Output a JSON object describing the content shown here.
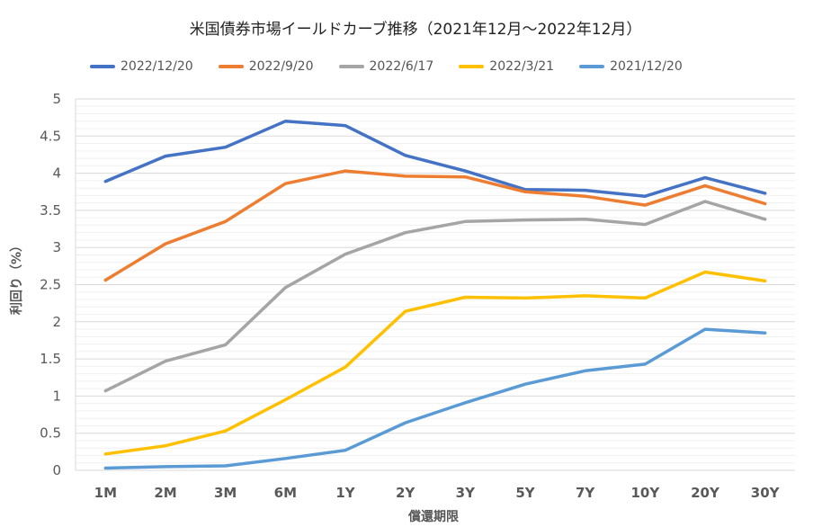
{
  "chart_data": {
    "type": "line",
    "title": "米国債券市場イールドカーブ推移（2021年12月～2022年12月）",
    "xlabel": "償還期限",
    "ylabel": "利回り（%）",
    "ylim": [
      0,
      5
    ],
    "yticks": [
      "0",
      "0.5",
      "1",
      "1.5",
      "2",
      "2.5",
      "3",
      "3.5",
      "4",
      "4.5",
      "5"
    ],
    "grid": true,
    "legend_position": "top",
    "categories": [
      "1M",
      "2M",
      "3M",
      "6M",
      "1Y",
      "2Y",
      "3Y",
      "5Y",
      "7Y",
      "10Y",
      "20Y",
      "30Y"
    ],
    "series": [
      {
        "name": "2022/12/20",
        "color": "#4472C4",
        "values": [
          3.89,
          4.23,
          4.35,
          4.7,
          4.64,
          4.24,
          4.03,
          3.78,
          3.77,
          3.69,
          3.94,
          3.73
        ]
      },
      {
        "name": "2022/9/20",
        "color": "#ED7D31",
        "values": [
          2.56,
          3.05,
          3.35,
          3.86,
          4.03,
          3.96,
          3.95,
          3.75,
          3.69,
          3.57,
          3.83,
          3.59
        ]
      },
      {
        "name": "2022/6/17",
        "color": "#A5A5A5",
        "values": [
          1.07,
          1.47,
          1.69,
          2.46,
          2.91,
          3.2,
          3.35,
          3.37,
          3.38,
          3.31,
          3.62,
          3.38
        ]
      },
      {
        "name": "2022/3/21",
        "color": "#FFC000",
        "values": [
          0.22,
          0.33,
          0.53,
          0.95,
          1.39,
          2.14,
          2.33,
          2.32,
          2.35,
          2.32,
          2.67,
          2.55
        ]
      },
      {
        "name": "2021/12/20",
        "color": "#5B9BD5",
        "values": [
          0.03,
          0.05,
          0.06,
          0.16,
          0.27,
          0.64,
          0.91,
          1.16,
          1.34,
          1.43,
          1.9,
          1.85
        ]
      }
    ]
  }
}
